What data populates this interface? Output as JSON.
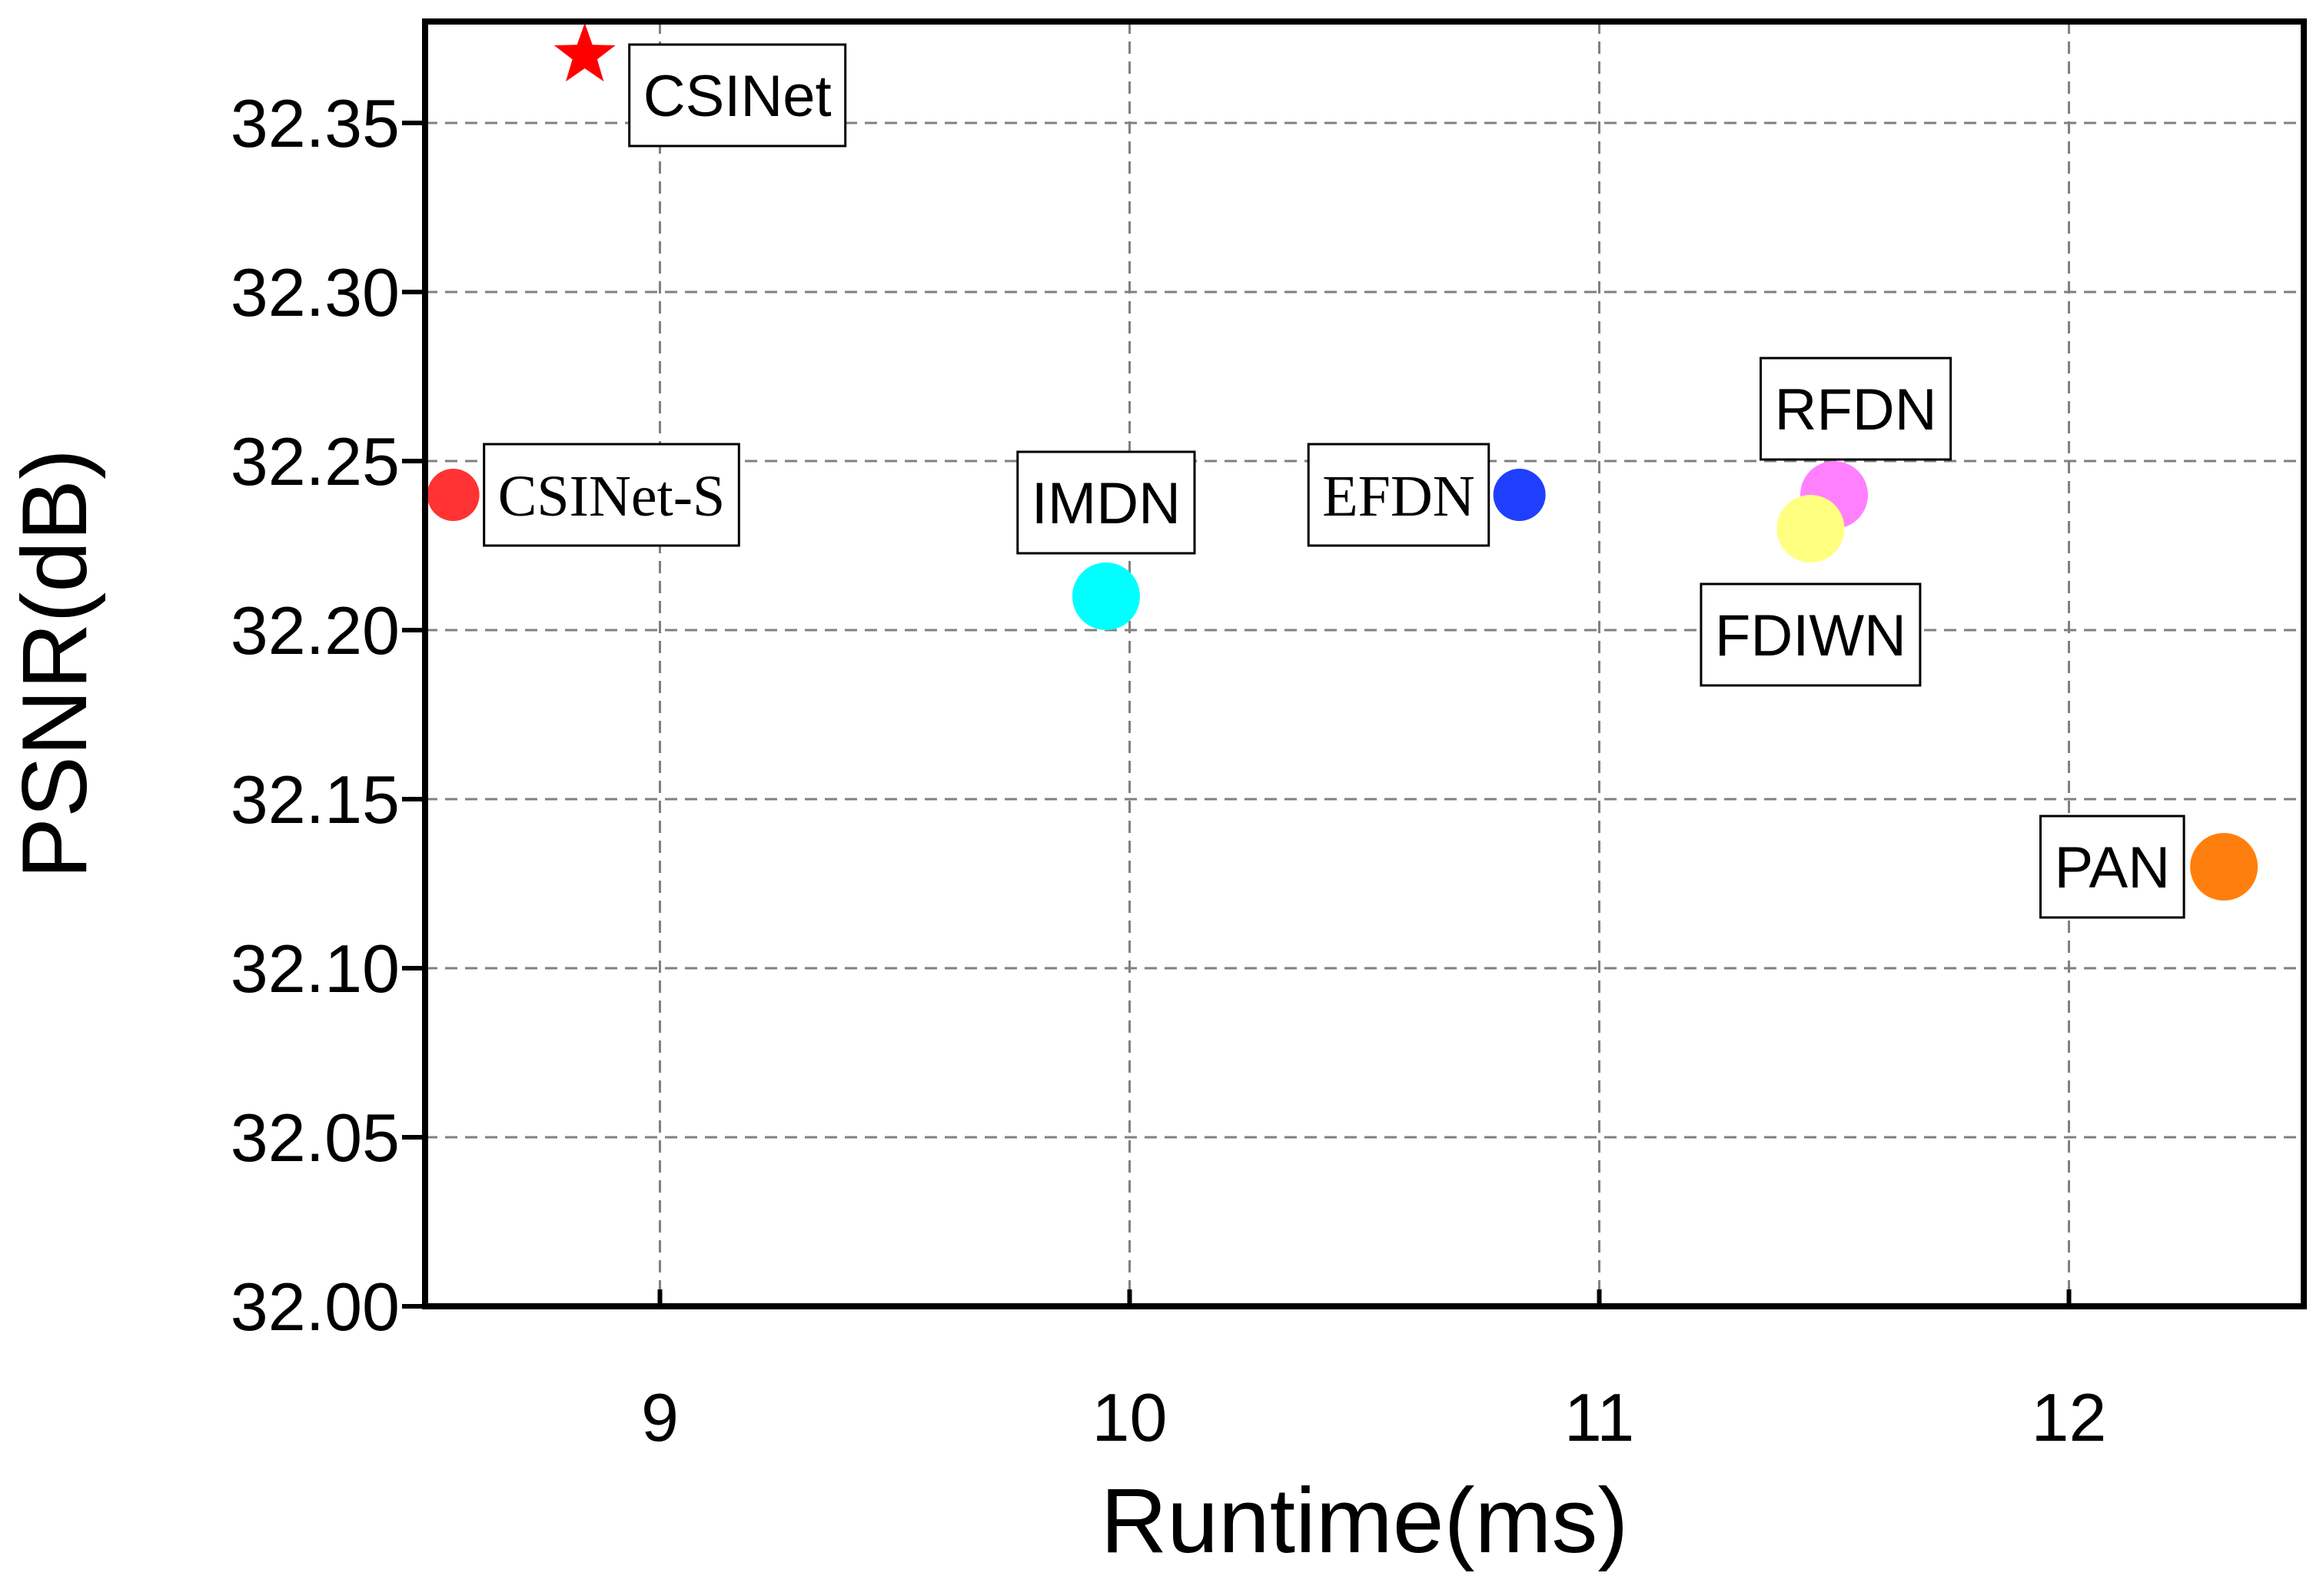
{
  "chart_data": {
    "type": "scatter",
    "xlabel": "Runtime(ms)",
    "ylabel": "PSNR(dB)",
    "xlim": [
      8.5,
      12.5
    ],
    "ylim": [
      32.0,
      32.38
    ],
    "xticks": [
      "9",
      "10",
      "11",
      "12"
    ],
    "yticks": [
      "32.00",
      "32.05",
      "32.10",
      "32.15",
      "32.20",
      "32.25",
      "32.30",
      "32.35"
    ],
    "grid": true,
    "points": [
      {
        "label": "CSINet",
        "x": 8.84,
        "y": 32.37,
        "color": "#ff0000",
        "marker": "star",
        "size": "medium",
        "font": "sans"
      },
      {
        "label": "CSINet-S",
        "x": 8.56,
        "y": 32.24,
        "color": "#ff3333",
        "marker": "circle",
        "size": "small",
        "font": "serif"
      },
      {
        "label": "IMDN",
        "x": 9.95,
        "y": 32.21,
        "color": "#00ffff",
        "marker": "circle",
        "size": "large",
        "font": "sans"
      },
      {
        "label": "EFDN",
        "x": 10.83,
        "y": 32.24,
        "color": "#1f3fff",
        "marker": "circle",
        "size": "small",
        "font": "serif"
      },
      {
        "label": "RFDN",
        "x": 11.5,
        "y": 32.24,
        "color": "#ff80ff",
        "marker": "circle",
        "size": "large",
        "font": "sans"
      },
      {
        "label": "FDIWN",
        "x": 11.45,
        "y": 32.23,
        "color": "#ffff80",
        "marker": "circle",
        "size": "large",
        "font": "sans"
      },
      {
        "label": "PAN",
        "x": 12.33,
        "y": 32.13,
        "color": "#ff7f0e",
        "marker": "circle",
        "size": "large",
        "font": "sans"
      }
    ]
  }
}
